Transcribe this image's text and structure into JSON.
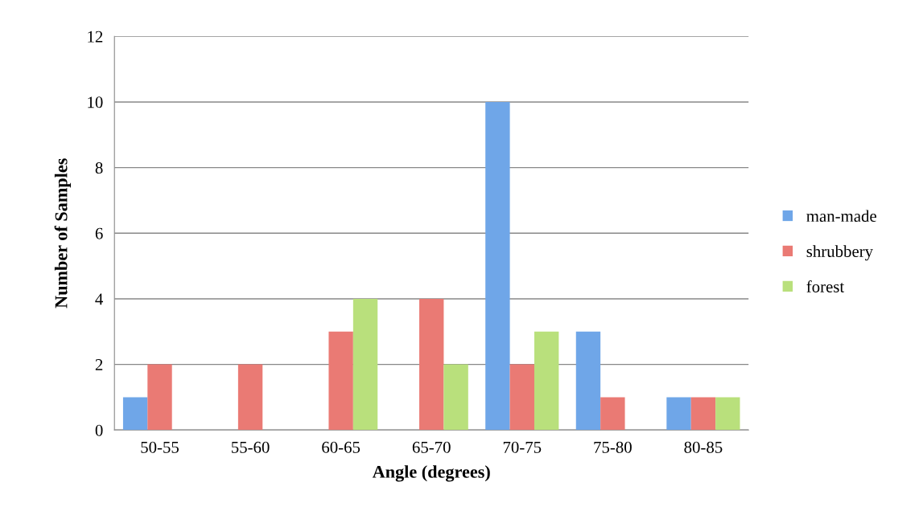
{
  "chart_data": {
    "type": "bar",
    "xlabel": "Angle (degrees)",
    "ylabel": "Number of Samples",
    "categories": [
      "50-55",
      "55-60",
      "60-65",
      "65-70",
      "70-75",
      "75-80",
      "80-85"
    ],
    "series": [
      {
        "name": "man-made",
        "color": "#6fa6e8",
        "values": [
          1,
          0,
          0,
          0,
          10,
          3,
          1
        ]
      },
      {
        "name": "shrubbery",
        "color": "#ea7a74",
        "values": [
          2,
          2,
          3,
          4,
          2,
          1,
          1
        ]
      },
      {
        "name": "forest",
        "color": "#b9e07c",
        "values": [
          0,
          0,
          4,
          2,
          3,
          0,
          1
        ]
      }
    ],
    "ylim": [
      0,
      12
    ],
    "yticks": [
      0,
      2,
      4,
      6,
      8,
      10,
      12
    ],
    "grid": "y",
    "legend": "right"
  }
}
